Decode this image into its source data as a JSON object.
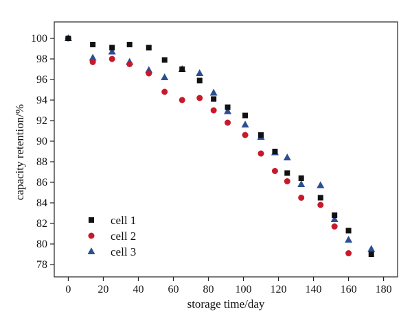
{
  "chart_data": {
    "type": "scatter",
    "xlabel": "storage time/day",
    "ylabel": "capacity retention/%",
    "xlim": [
      -8,
      188
    ],
    "ylim": [
      76.8,
      101.6
    ],
    "xticks": [
      0,
      20,
      40,
      60,
      80,
      100,
      120,
      140,
      160,
      180
    ],
    "yticks": [
      78,
      80,
      82,
      84,
      86,
      88,
      90,
      92,
      94,
      96,
      98,
      100
    ],
    "xtick_labels": [
      "0",
      "20",
      "40",
      "60",
      "80",
      "100",
      "120",
      "140",
      "160",
      "180"
    ],
    "ytick_labels": [
      "78",
      "80",
      "82",
      "84",
      "86",
      "88",
      "90",
      "92",
      "94",
      "96",
      "98",
      "100"
    ],
    "grid": false,
    "legend_position": "bottom-left",
    "series": [
      {
        "name": "cell 1",
        "marker": "square",
        "color": "#111111",
        "x": [
          0,
          14,
          25,
          35,
          46,
          55,
          65,
          75,
          83,
          91,
          101,
          110,
          118,
          125,
          133,
          144,
          152,
          160,
          173
        ],
        "y": [
          100.0,
          99.4,
          99.1,
          99.4,
          99.1,
          97.9,
          97.0,
          95.9,
          94.1,
          93.3,
          92.5,
          90.6,
          89.0,
          86.9,
          86.4,
          84.5,
          82.8,
          81.3,
          79.0
        ]
      },
      {
        "name": "cell 2",
        "marker": "circle",
        "color": "#c8192a",
        "x": [
          0,
          14,
          25,
          35,
          46,
          55,
          65,
          75,
          83,
          91,
          101,
          110,
          118,
          125,
          133,
          144,
          152,
          160
        ],
        "y": [
          100.0,
          97.7,
          98.0,
          97.5,
          96.6,
          94.8,
          94.0,
          94.2,
          93.0,
          91.8,
          90.6,
          88.8,
          87.1,
          86.1,
          84.5,
          83.8,
          81.7,
          79.1
        ]
      },
      {
        "name": "cell 3",
        "marker": "triangle",
        "color": "#2c4f92",
        "x": [
          0,
          14,
          25,
          35,
          46,
          55,
          65,
          75,
          83,
          91,
          101,
          110,
          118,
          125,
          133,
          144,
          152,
          160,
          173
        ],
        "y": [
          100.0,
          98.1,
          98.7,
          97.7,
          96.9,
          96.2,
          97.0,
          96.6,
          94.7,
          92.9,
          91.6,
          90.4,
          88.9,
          88.4,
          85.8,
          85.7,
          82.4,
          80.4,
          79.5
        ]
      }
    ]
  }
}
